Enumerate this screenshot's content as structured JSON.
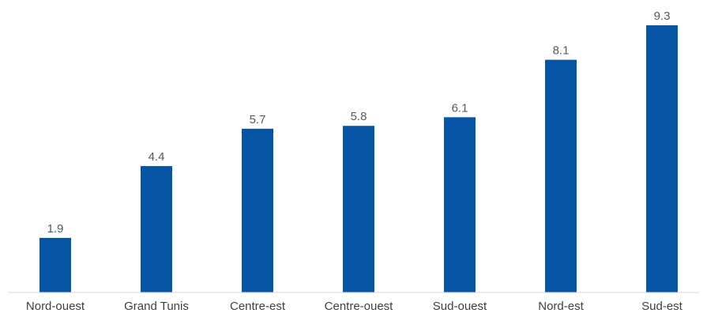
{
  "chart_data": {
    "type": "bar",
    "title": "",
    "xlabel": "",
    "ylabel": "",
    "categories": [
      "Nord-ouest",
      "Grand Tunis",
      "Centre-est",
      "Centre-ouest",
      "Sud-ouest",
      "Nord-est",
      "Sud-est"
    ],
    "values": [
      1.9,
      4.4,
      5.7,
      5.8,
      6.1,
      8.1,
      9.3
    ],
    "data_labels": [
      "1.9",
      "4.4",
      "5.7",
      "5.8",
      "6.1",
      "8.1",
      "9.3"
    ],
    "ylim": [
      0,
      9.3
    ],
    "grid": false,
    "legend": "none",
    "bar_color": "#0555a4"
  }
}
